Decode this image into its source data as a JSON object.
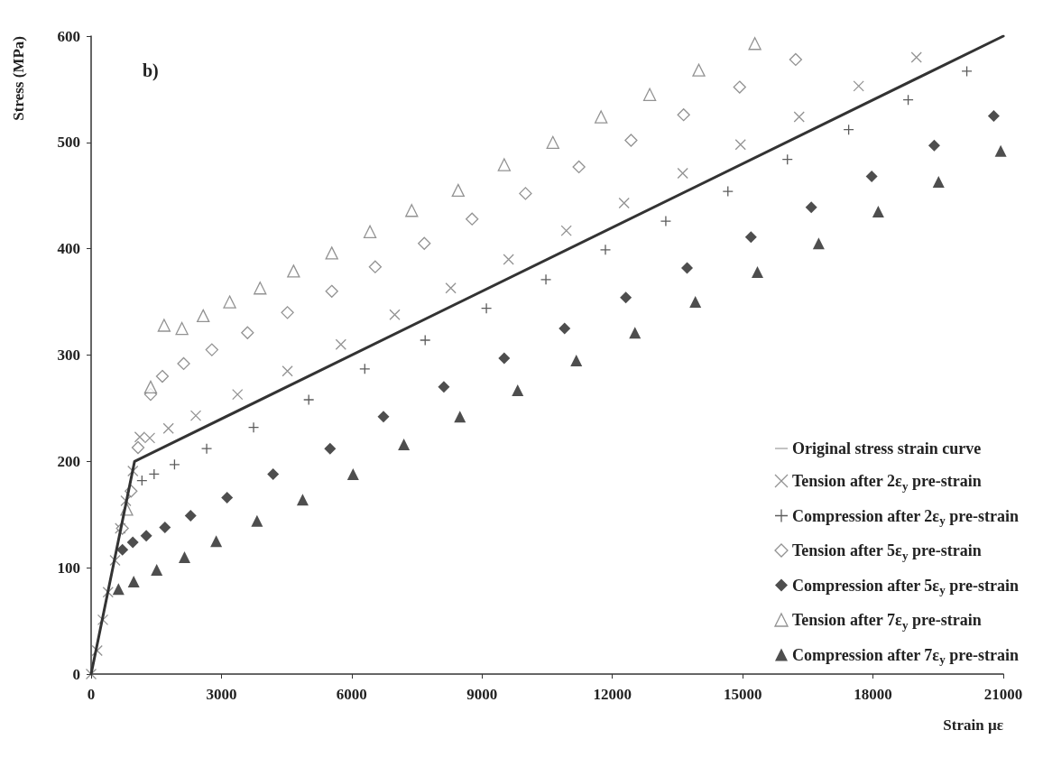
{
  "chart_data": {
    "type": "scatter",
    "xlabel": "Strain µε",
    "ylabel": "Stress (MPa)",
    "annotations": [
      "b)"
    ],
    "xlim": [
      0,
      21000
    ],
    "xticks": [
      0,
      3000,
      6000,
      9000,
      12000,
      15000,
      18000,
      21000
    ],
    "ylim": [
      0,
      600
    ],
    "yticks": [
      0,
      100,
      200,
      300,
      400,
      500,
      600
    ],
    "grid": false,
    "legend": "bottom right",
    "series": [
      {
        "name": "Original stress strain curve",
        "type": "line",
        "color": "#333333",
        "marker": "none",
        "line_style": "solid",
        "x": [
          0,
          1000,
          21000
        ],
        "values": [
          0,
          200,
          600
        ]
      },
      {
        "name": "Tension after 2ε$_{y}$ pre-strain",
        "color": "#777777",
        "marker": "cross",
        "x": [
          0,
          140,
          270,
          390,
          550,
          670,
          800,
          960,
          1120,
          1350,
          1780,
          2410,
          3370,
          4520,
          5750,
          6990,
          8280,
          9610,
          10940,
          12270,
          13620,
          14950,
          16300,
          17670,
          19000
        ],
        "values": [
          0,
          22,
          51,
          77,
          107,
          137,
          163,
          191,
          223,
          222,
          231,
          243,
          263,
          285,
          310,
          338,
          363,
          390,
          417,
          443,
          471,
          498,
          524,
          553,
          580
        ]
      },
      {
        "name": "Compression after 2ε$_{y}$ pre-strain",
        "color": "#333333",
        "marker": "plus",
        "x": [
          1170,
          1450,
          1920,
          2660,
          3740,
          5010,
          6300,
          7690,
          9100,
          10470,
          11840,
          13230,
          14660,
          16030,
          17440,
          18810,
          20160
        ],
        "values": [
          182,
          188,
          197,
          212,
          232,
          258,
          287,
          314,
          344,
          371,
          399,
          426,
          454,
          484,
          512,
          540,
          567
        ]
      },
      {
        "name": "Tension after 5ε$_{y}$ pre-strain",
        "color": "#777777",
        "marker": "diamond",
        "x": [
          720,
          920,
          1080,
          1370,
          1640,
          2130,
          2780,
          3600,
          4520,
          5540,
          6540,
          7670,
          8770,
          10000,
          11230,
          12430,
          13640,
          14930,
          16220
        ],
        "values": [
          137,
          172,
          213,
          263,
          280,
          292,
          305,
          321,
          340,
          360,
          383,
          405,
          428,
          452,
          477,
          502,
          526,
          552,
          578
        ]
      },
      {
        "name": "Compression after 5ε$_{y}$ pre-strain",
        "color": "#222222",
        "marker": "diamond",
        "x": [
          720,
          960,
          1270,
          1700,
          2290,
          3130,
          4190,
          5500,
          6730,
          8120,
          9510,
          10900,
          12310,
          13720,
          15190,
          16580,
          17970,
          19410,
          20780
        ],
        "values": [
          117,
          124,
          130,
          138,
          149,
          166,
          188,
          212,
          242,
          270,
          297,
          325,
          354,
          382,
          411,
          439,
          468,
          497,
          525
        ]
      },
      {
        "name": "Tension after 7ε$_{y}$ pre-strain",
        "color": "#777777",
        "marker": "triangle",
        "x": [
          820,
          1370,
          1680,
          2090,
          2580,
          3190,
          3890,
          4660,
          5540,
          6420,
          7380,
          8450,
          9510,
          10630,
          11740,
          12860,
          13990,
          15280
        ],
        "values": [
          155,
          270,
          328,
          325,
          337,
          350,
          363,
          379,
          396,
          416,
          436,
          455,
          479,
          500,
          524,
          545,
          568,
          593
        ]
      },
      {
        "name": "Compression after 7ε$_{y}$ pre-strain",
        "color": "#222222",
        "marker": "triangle",
        "x": [
          630,
          980,
          1510,
          2150,
          2880,
          3820,
          4870,
          6030,
          7200,
          8490,
          9820,
          11170,
          12520,
          13910,
          15340,
          16750,
          18120,
          19510,
          20940
        ],
        "values": [
          80,
          87,
          98,
          110,
          125,
          144,
          164,
          188,
          216,
          242,
          267,
          295,
          321,
          350,
          378,
          405,
          435,
          463,
          492
        ]
      }
    ]
  }
}
